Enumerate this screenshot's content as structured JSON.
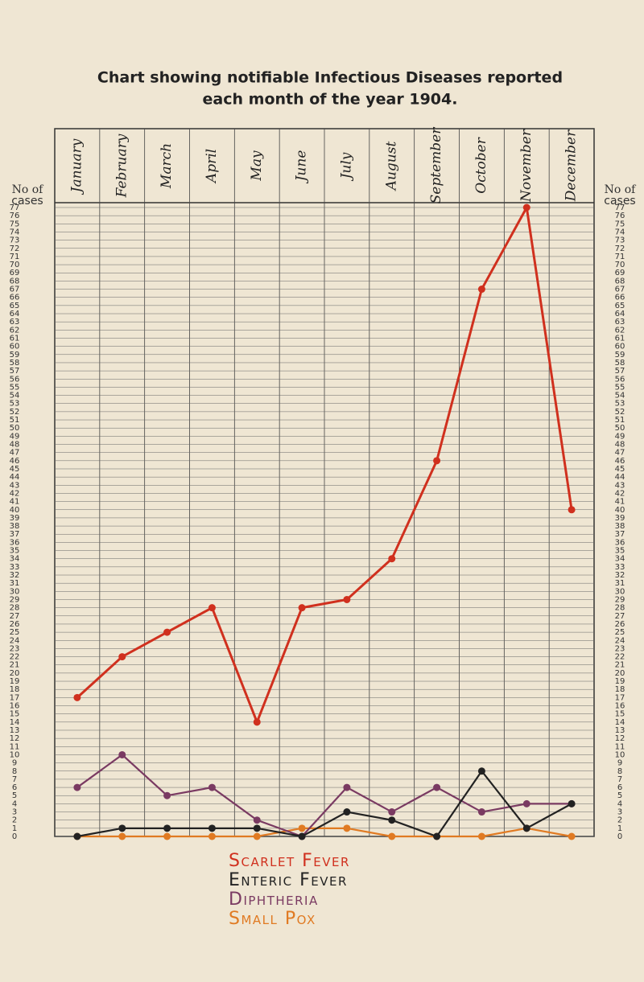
{
  "chart_data": {
    "type": "line",
    "title": "Chart showing notifiable Infectious Diseases reported",
    "subtitle": "each month of the year 1904.",
    "ylabel": [
      "No of",
      "cases"
    ],
    "categories": [
      "January",
      "February",
      "March",
      "April",
      "May",
      "June",
      "July",
      "August",
      "September",
      "October",
      "November",
      "December"
    ],
    "series": [
      {
        "name": "Scarlet Fever",
        "color": "#d0301e",
        "values": [
          17,
          22,
          25,
          28,
          14,
          28,
          29,
          34,
          46,
          67,
          77,
          40
        ]
      },
      {
        "name": "Enteric Fever",
        "color": "#222222",
        "values": [
          0,
          1,
          1,
          1,
          1,
          0,
          3,
          2,
          0,
          8,
          1,
          4
        ]
      },
      {
        "name": "Diphtheria",
        "color": "#7a3a62",
        "values": [
          6,
          10,
          5,
          6,
          2,
          0,
          6,
          3,
          6,
          3,
          4,
          4
        ]
      },
      {
        "name": "Small Pox",
        "color": "#e07a22",
        "values": [
          0,
          0,
          0,
          0,
          0,
          1,
          1,
          0,
          0,
          0,
          1,
          0
        ]
      }
    ],
    "ylim": [
      0,
      77
    ],
    "yticks": [
      0,
      1,
      2,
      3,
      4,
      5,
      6,
      7,
      8,
      9,
      10,
      11,
      12,
      13,
      14,
      15,
      16,
      17,
      18,
      19,
      20,
      21,
      22,
      23,
      24,
      25,
      26,
      27,
      28,
      29,
      30,
      31,
      32,
      33,
      34,
      35,
      36,
      37,
      38,
      39,
      40,
      41,
      42,
      43,
      44,
      45,
      46,
      47,
      48,
      49,
      50,
      51,
      52,
      53,
      54,
      55,
      56,
      57,
      58,
      59,
      60,
      61,
      62,
      63,
      64,
      65,
      66,
      67,
      68,
      69,
      70,
      71,
      72,
      73,
      74,
      75,
      76,
      77
    ],
    "grid": true
  }
}
